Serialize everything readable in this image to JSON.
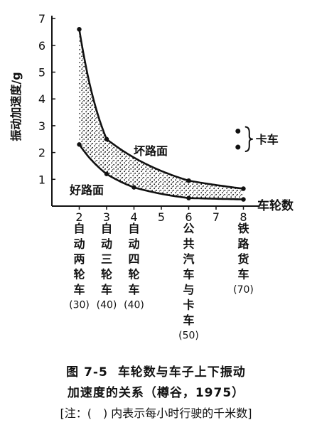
{
  "chart_data": {
    "type": "area",
    "ylabel": "振动加速度/g",
    "xlabel": "车轮数",
    "xlim": [
      1,
      8.6
    ],
    "ylim": [
      0,
      7
    ],
    "xticks": [
      2,
      3,
      4,
      5,
      6,
      7,
      8
    ],
    "yticks": [
      1,
      2,
      3,
      4,
      5,
      6,
      7
    ],
    "series": [
      {
        "name": "坏路面",
        "x": [
          2,
          3,
          6,
          8
        ],
        "y": [
          6.6,
          2.5,
          0.95,
          0.65
        ]
      },
      {
        "name": "好路面",
        "x": [
          2,
          3,
          4,
          6,
          8
        ],
        "y": [
          2.3,
          1.2,
          0.7,
          0.3,
          0.25
        ]
      }
    ],
    "truck_points": {
      "label": "卡车",
      "x": 7.8,
      "y": [
        2.8,
        2.2
      ]
    },
    "vehicle_labels": [
      {
        "x": 2,
        "text": "自动两轮车",
        "speed": "(30)"
      },
      {
        "x": 3,
        "text": "自动三轮车",
        "speed": "(40)"
      },
      {
        "x": 4,
        "text": "自动四轮车",
        "speed": "(40)"
      },
      {
        "x": 6,
        "text": "公共汽车与卡车",
        "speed": "(50)"
      },
      {
        "x": 8,
        "text": "铁路货车",
        "speed": "(70)"
      }
    ]
  },
  "caption": {
    "figure_number": "图 7-5",
    "title": "车轮数与车子上下振动",
    "subtitle": "加速度的关系（樽谷，1975）",
    "note": "[注：(　) 内表示每小时行驶的千米数]"
  }
}
